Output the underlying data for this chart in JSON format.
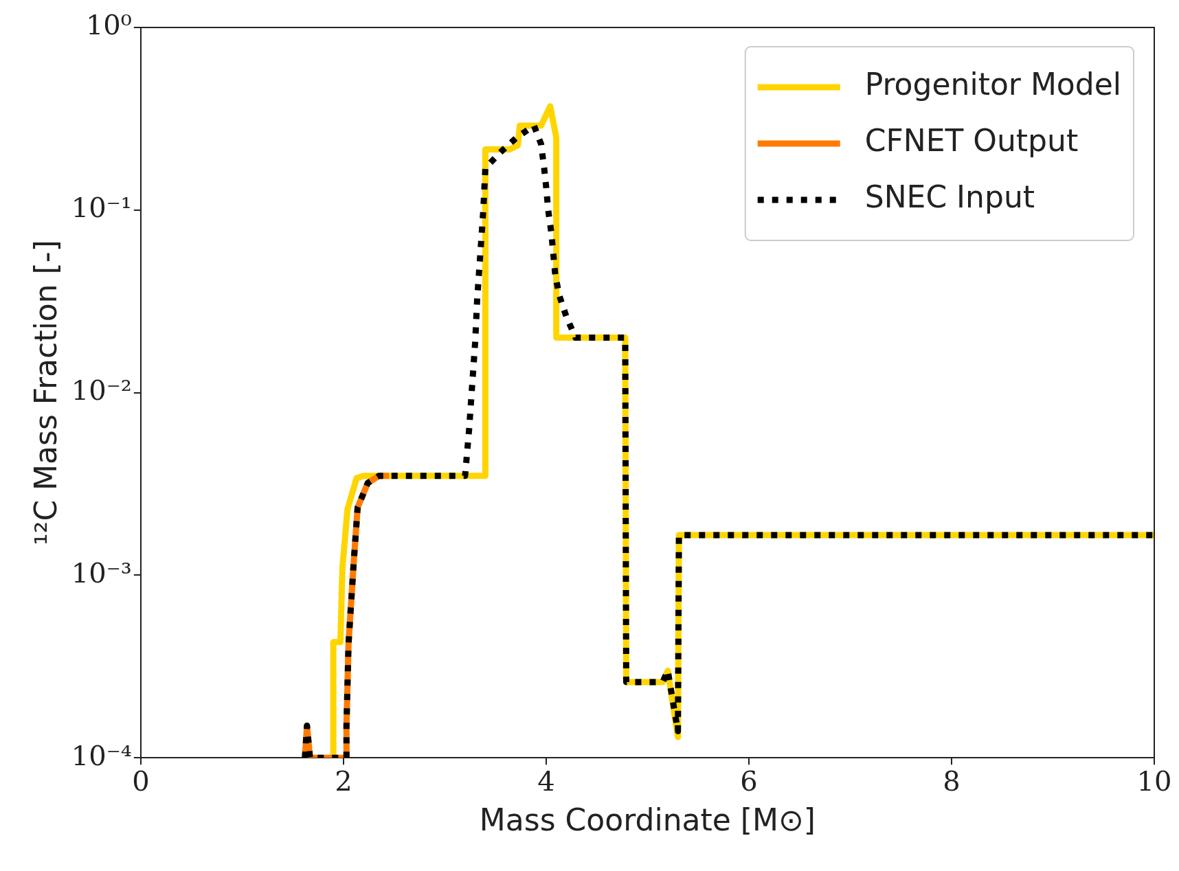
{
  "chart_data": {
    "type": "line",
    "xlabel": "Mass Coordinate [M⊙]",
    "ylabel": "¹²C Mass Fraction [-]",
    "log": "y",
    "xlim": [
      0,
      10
    ],
    "xticks": [
      0,
      2,
      4,
      6,
      8,
      10
    ],
    "ylim": [
      0.0001,
      1
    ],
    "yticks": [
      {
        "value": 0.0001,
        "label": "10⁻⁴"
      },
      {
        "value": 0.001,
        "label": "10⁻³"
      },
      {
        "value": 0.01,
        "label": "10⁻²"
      },
      {
        "value": 0.1,
        "label": "10⁻¹"
      },
      {
        "value": 1,
        "label": "10⁰"
      }
    ],
    "grid": false,
    "legend": "top right",
    "marker": "none",
    "series": [
      {
        "name": "Progenitor Model",
        "color": "#ffd500",
        "line_style": "solid",
        "x": [
          1.9,
          1.9,
          1.97,
          1.99,
          2.04,
          2.13,
          2.2,
          3.4,
          3.4,
          3.64,
          3.72,
          3.74,
          3.95,
          4.04,
          4.1,
          4.1,
          4.78,
          4.79,
          5.15,
          5.2,
          5.3,
          5.31,
          10
        ],
        "values": [
          0.0001,
          0.00043,
          0.00043,
          0.0011,
          0.0023,
          0.0034,
          0.0035,
          0.0035,
          0.215,
          0.215,
          0.226,
          0.29,
          0.29,
          0.37,
          0.25,
          0.02,
          0.02,
          0.00026,
          0.00026,
          0.0003,
          0.00013,
          0.00166,
          0.00166
        ]
      },
      {
        "name": "CFNET Output",
        "color": "#ff7a00",
        "line_style": "solid",
        "x": [
          1.62,
          1.64,
          1.67,
          2.03,
          2.03,
          2.05,
          2.1,
          2.14,
          2.24,
          2.35,
          2.45
        ],
        "values": [
          0.0001,
          0.00015,
          0.0001,
          0.0001,
          0.00015,
          0.00042,
          0.00115,
          0.00235,
          0.0032,
          0.0035,
          0.0035
        ]
      },
      {
        "name": "SNEC Input",
        "color": "#000000",
        "line_style": "dotted",
        "x": [
          1.62,
          1.64,
          1.67,
          2.03,
          2.03,
          2.05,
          2.1,
          2.14,
          2.24,
          2.35,
          3.2,
          3.24,
          3.27,
          3.3,
          3.32,
          3.35,
          3.38,
          3.4,
          3.56,
          3.71,
          3.88,
          3.95,
          3.98,
          4.0,
          4.02,
          4.05,
          4.07,
          4.09,
          4.13,
          4.2,
          4.29,
          4.78,
          4.79,
          5.15,
          5.2,
          5.3,
          5.31,
          10
        ],
        "values": [
          0.0001,
          0.00015,
          0.0001,
          0.0001,
          0.00015,
          0.00042,
          0.00115,
          0.00235,
          0.0032,
          0.0035,
          0.0035,
          0.0063,
          0.011,
          0.019,
          0.033,
          0.057,
          0.1,
          0.17,
          0.21,
          0.25,
          0.29,
          0.23,
          0.17,
          0.134,
          0.1,
          0.076,
          0.058,
          0.044,
          0.034,
          0.026,
          0.02,
          0.02,
          0.00026,
          0.00026,
          0.0003,
          0.00014,
          0.00166,
          0.00166
        ]
      }
    ]
  }
}
